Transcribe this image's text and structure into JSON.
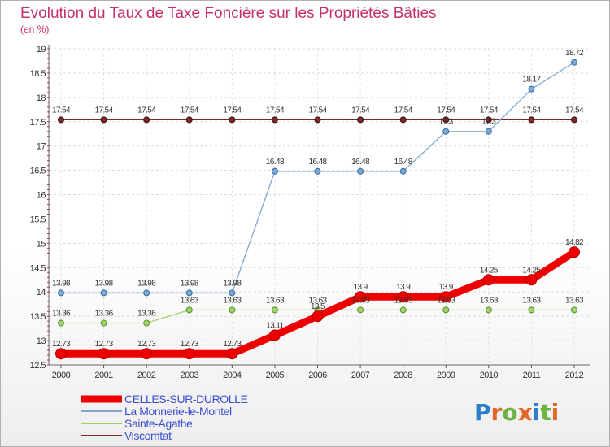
{
  "chart_data": {
    "type": "line",
    "title": "Evolution du Taux de Taxe Foncière sur les Propriétés Bâties",
    "ylabel": "(en %)",
    "xlabel": "",
    "x": [
      "2000",
      "2001",
      "2002",
      "2003",
      "2004",
      "2005",
      "2006",
      "2007",
      "2008",
      "2009",
      "2010",
      "2011",
      "2012"
    ],
    "ylim": [
      12.5,
      19
    ],
    "yticks": [
      "12.5",
      "13",
      "13.5",
      "14",
      "14.5",
      "15",
      "15.5",
      "16",
      "16.5",
      "17",
      "17.5",
      "18",
      "18.5",
      "19"
    ],
    "series": [
      {
        "name": "CELLES-SUR-DUROLLE",
        "color": "#ee0000",
        "values": [
          12.73,
          12.73,
          12.73,
          12.73,
          12.73,
          13.11,
          13.5,
          13.9,
          13.9,
          13.9,
          14.25,
          14.25,
          14.82
        ],
        "labels": [
          "12.73",
          "12.73",
          "12.73",
          "12.73",
          "12.73",
          "13.11",
          "13.5",
          "13.9",
          "13.9",
          "13.9",
          "14.25",
          "14.25",
          "14.82"
        ]
      },
      {
        "name": "La Monnerie-le-Montel",
        "color": "#7fa7d0",
        "values": [
          13.98,
          13.98,
          13.98,
          13.98,
          13.98,
          16.48,
          16.48,
          16.48,
          16.48,
          17.3,
          17.3,
          18.17,
          18.72
        ],
        "labels": [
          "13.98",
          "13.98",
          "13.98",
          "13.98",
          "13.98",
          "16.48",
          "16.48",
          "16.48",
          "16.48",
          "17.3",
          "17.3",
          "18.17",
          "18.72"
        ]
      },
      {
        "name": "Sainte-Agathe",
        "color": "#9fd36b",
        "values": [
          13.36,
          13.36,
          13.36,
          13.63,
          13.63,
          13.63,
          13.63,
          13.63,
          13.63,
          13.63,
          13.63,
          13.63,
          13.63
        ],
        "labels": [
          "13.36",
          "13.36",
          "13.36",
          "13.63",
          "13.63",
          "13.63",
          "13.63",
          "13.63",
          "13.63",
          "13.63",
          "13.63",
          "13.63",
          "13.63"
        ]
      },
      {
        "name": "Viscomtat",
        "color": "#7a2a2a",
        "values": [
          17.54,
          17.54,
          17.54,
          17.54,
          17.54,
          17.54,
          17.54,
          17.54,
          17.54,
          17.54,
          17.54,
          17.54,
          17.54
        ],
        "labels": [
          "17.54",
          "17.54",
          "17.54",
          "17.54",
          "17.54",
          "17.54",
          "17.54",
          "17.54",
          "17.54",
          "17.54",
          "17.54",
          "17.54",
          "17.54"
        ]
      }
    ]
  },
  "brand": {
    "letters": [
      "P",
      "r",
      "o",
      "x",
      "i",
      "t",
      "i"
    ],
    "colors": [
      "#2a7fc7",
      "#e0662a",
      "#6cb33f",
      "#e0662a",
      "#2a7fc7",
      "#6cb33f",
      "#e0662a"
    ]
  }
}
